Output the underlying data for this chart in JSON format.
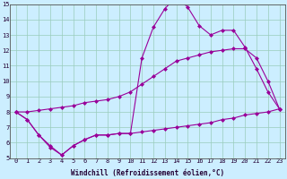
{
  "xlabel": "Windchill (Refroidissement éolien,°C)",
  "x": [
    0,
    1,
    2,
    3,
    4,
    5,
    6,
    7,
    8,
    9,
    10,
    11,
    12,
    13,
    14,
    15,
    16,
    17,
    18,
    19,
    20,
    21,
    22,
    23
  ],
  "line1": [
    8.0,
    7.5,
    6.5,
    5.7,
    5.2,
    5.8,
    6.2,
    6.5,
    6.5,
    6.6,
    6.6,
    11.5,
    13.5,
    14.7,
    15.5,
    14.8,
    13.6,
    13.0,
    13.3,
    13.3,
    12.2,
    10.8,
    9.3,
    8.2
  ],
  "line2": [
    8.0,
    8.0,
    8.1,
    8.2,
    8.3,
    8.4,
    8.6,
    8.7,
    8.8,
    9.0,
    9.3,
    9.8,
    10.3,
    10.8,
    11.3,
    11.5,
    11.7,
    11.9,
    12.0,
    12.1,
    12.1,
    11.5,
    10.0,
    8.2
  ],
  "line3": [
    8.0,
    7.5,
    6.5,
    5.8,
    5.2,
    5.8,
    6.2,
    6.5,
    6.5,
    6.6,
    6.6,
    6.7,
    6.8,
    6.9,
    7.0,
    7.1,
    7.2,
    7.3,
    7.5,
    7.6,
    7.8,
    7.9,
    8.0,
    8.2
  ],
  "line_color": "#990099",
  "bg_color": "#cceeff",
  "grid_color": "#99ccbb",
  "ylim": [
    5,
    15
  ],
  "xlim": [
    -0.5,
    23.5
  ],
  "yticks": [
    5,
    6,
    7,
    8,
    9,
    10,
    11,
    12,
    13,
    14,
    15
  ],
  "xticks": [
    0,
    1,
    2,
    3,
    4,
    5,
    6,
    7,
    8,
    9,
    10,
    11,
    12,
    13,
    14,
    15,
    16,
    17,
    18,
    19,
    20,
    21,
    22,
    23
  ],
  "marker": "D",
  "markersize": 2.0,
  "linewidth": 0.8,
  "label_fontsize": 5.5,
  "tick_fontsize": 5.0,
  "tick_color": "#220033",
  "label_color": "#220033"
}
